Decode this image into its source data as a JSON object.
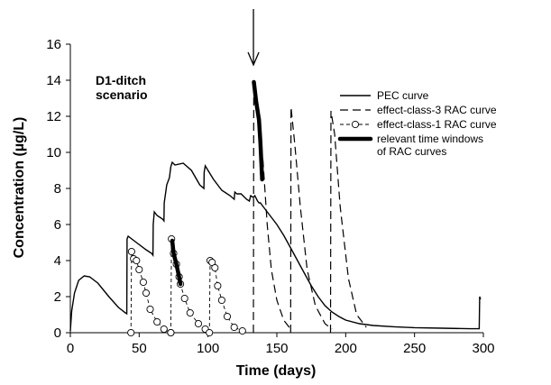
{
  "chart_data": {
    "type": "line",
    "xlabel": "Time (days)",
    "ylabel": "Concentration (µg/L)",
    "xlim": [
      0,
      300
    ],
    "ylim": [
      0,
      16
    ],
    "xticks": [
      0,
      50,
      100,
      150,
      200,
      250,
      300
    ],
    "yticks": [
      0,
      2,
      4,
      6,
      8,
      10,
      12,
      14,
      16
    ],
    "grid": false,
    "legend_position": "right",
    "annotation": [
      "D1-ditch",
      "scenario"
    ],
    "arrow_marker_x": 133,
    "legend": [
      {
        "label": "PEC curve",
        "style": "solid"
      },
      {
        "label": "effect-class-3 RAC curve",
        "style": "dashed"
      },
      {
        "label": "effect-class-1 RAC curve",
        "style": "dashed-circle"
      },
      {
        "label": "relevant time windows",
        "label2": "of RAC curves",
        "style": "thick"
      }
    ],
    "series": [
      {
        "key": "pec",
        "style": "solid",
        "points": [
          [
            0,
            0.1
          ],
          [
            1,
            1.2
          ],
          [
            3,
            2.2
          ],
          [
            6,
            2.9
          ],
          [
            10,
            3.15
          ],
          [
            14,
            3.1
          ],
          [
            20,
            2.75
          ],
          [
            28,
            2.0
          ],
          [
            35,
            1.4
          ],
          [
            40,
            1.1
          ],
          [
            41,
            1.05
          ],
          [
            41.2,
            5.2
          ],
          [
            42,
            5.35
          ],
          [
            48,
            5.0
          ],
          [
            55,
            4.6
          ],
          [
            59,
            4.4
          ],
          [
            60,
            4.3
          ],
          [
            60.2,
            6.0
          ],
          [
            61,
            6.7
          ],
          [
            63,
            6.5
          ],
          [
            67,
            6.3
          ],
          [
            68,
            6.2
          ],
          [
            68.2,
            7.2
          ],
          [
            70,
            8.2
          ],
          [
            72,
            8.6
          ],
          [
            73,
            9.2
          ],
          [
            74,
            9.45
          ],
          [
            76,
            9.3
          ],
          [
            82,
            9.4
          ],
          [
            88,
            9.0
          ],
          [
            94,
            8.2
          ],
          [
            97,
            8.0
          ],
          [
            97.2,
            8.9
          ],
          [
            98,
            9.25
          ],
          [
            104,
            8.5
          ],
          [
            110,
            7.9
          ],
          [
            116,
            7.6
          ],
          [
            119,
            7.4
          ],
          [
            119.5,
            7.8
          ],
          [
            121,
            7.7
          ],
          [
            124,
            7.7
          ],
          [
            128,
            7.4
          ],
          [
            130,
            7.3
          ],
          [
            131,
            7.6
          ],
          [
            133,
            7.5
          ],
          [
            134,
            7.6
          ],
          [
            136,
            7.3
          ],
          [
            137,
            7.2
          ],
          [
            138,
            7.2
          ],
          [
            140,
            7.0
          ],
          [
            143,
            6.7
          ],
          [
            146,
            6.4
          ],
          [
            150,
            6.0
          ],
          [
            155,
            5.4
          ],
          [
            160,
            4.7
          ],
          [
            165,
            4.0
          ],
          [
            170,
            3.3
          ],
          [
            175,
            2.6
          ],
          [
            180,
            2.0
          ],
          [
            185,
            1.5
          ],
          [
            190,
            1.15
          ],
          [
            195,
            0.9
          ],
          [
            200,
            0.7
          ],
          [
            210,
            0.5
          ],
          [
            220,
            0.4
          ],
          [
            235,
            0.33
          ],
          [
            250,
            0.28
          ],
          [
            270,
            0.25
          ],
          [
            290,
            0.22
          ],
          [
            297,
            0.22
          ],
          [
            297.3,
            2.0
          ],
          [
            298,
            1.85
          ]
        ]
      },
      {
        "key": "rac3-1",
        "style": "dashed",
        "points": [
          [
            133,
            0.0
          ],
          [
            133.2,
            13.9
          ],
          [
            137,
            11.8
          ],
          [
            140,
            9.5
          ],
          [
            143,
            6.0
          ],
          [
            146,
            3.5
          ],
          [
            150,
            1.8
          ],
          [
            155,
            0.7
          ],
          [
            160,
            0.2
          ]
        ]
      },
      {
        "key": "rac3-2",
        "style": "dashed",
        "points": [
          [
            160,
            0.0
          ],
          [
            160.3,
            12.5
          ],
          [
            163,
            10.5
          ],
          [
            167,
            7.0
          ],
          [
            172,
            3.5
          ],
          [
            178,
            1.5
          ],
          [
            185,
            0.5
          ],
          [
            190,
            0.2
          ]
        ]
      },
      {
        "key": "rac3-3",
        "style": "dashed",
        "points": [
          [
            189,
            0.0
          ],
          [
            189.3,
            12.3
          ],
          [
            192,
            11.0
          ],
          [
            196,
            7.0
          ],
          [
            202,
            3.0
          ],
          [
            208,
            1.0
          ],
          [
            215,
            0.3
          ]
        ]
      },
      {
        "key": "rac1-1",
        "style": "dashed-circle",
        "points": [
          [
            44,
            0.0
          ],
          [
            44.5,
            4.5
          ],
          [
            46,
            4.1
          ],
          [
            48,
            4.0
          ],
          [
            50,
            3.5
          ],
          [
            53,
            2.8
          ],
          [
            55,
            2.2
          ],
          [
            58,
            1.3
          ],
          [
            63,
            0.6
          ],
          [
            68,
            0.2
          ],
          [
            73,
            0.0
          ]
        ]
      },
      {
        "key": "rac1-2",
        "style": "dashed-circle",
        "points": [
          [
            73,
            0.0
          ],
          [
            73.5,
            5.2
          ],
          [
            75,
            4.4
          ],
          [
            77,
            3.8
          ],
          [
            79,
            3.1
          ],
          [
            80,
            2.7
          ],
          [
            83,
            1.9
          ],
          [
            87,
            1.1
          ],
          [
            93,
            0.5
          ],
          [
            98,
            0.2
          ]
        ]
      },
      {
        "key": "rac1-3",
        "style": "dashed-circle",
        "points": [
          [
            101,
            0.0
          ],
          [
            101.5,
            4.0
          ],
          [
            103,
            3.9
          ],
          [
            105,
            3.6
          ],
          [
            107,
            2.6
          ],
          [
            110,
            1.8
          ],
          [
            114,
            0.9
          ],
          [
            119,
            0.3
          ],
          [
            125,
            0.1
          ]
        ]
      },
      {
        "key": "window-1",
        "style": "thick",
        "points": [
          [
            74,
            5.1
          ],
          [
            75,
            4.4
          ],
          [
            77,
            3.8
          ],
          [
            79,
            3.1
          ],
          [
            80,
            2.7
          ]
        ]
      },
      {
        "key": "window-2",
        "style": "thick",
        "points": [
          [
            133.3,
            13.9
          ],
          [
            135,
            12.8
          ],
          [
            137,
            11.8
          ],
          [
            138,
            10.6
          ],
          [
            139.3,
            8.5
          ]
        ]
      }
    ]
  }
}
